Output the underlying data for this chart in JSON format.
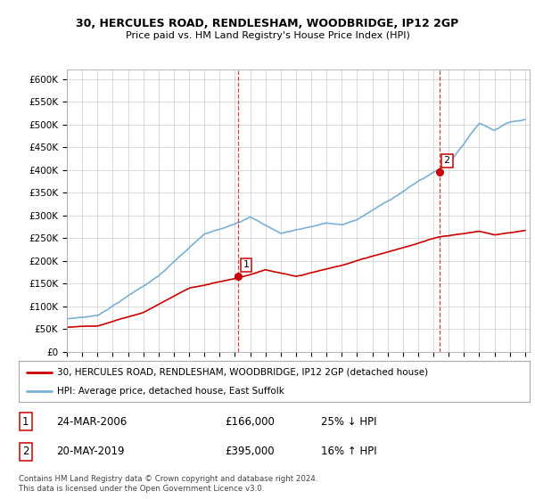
{
  "title1": "30, HERCULES ROAD, RENDLESHAM, WOODBRIDGE, IP12 2GP",
  "title2": "Price paid vs. HM Land Registry's House Price Index (HPI)",
  "ylabel_ticks": [
    "£0",
    "£50K",
    "£100K",
    "£150K",
    "£200K",
    "£250K",
    "£300K",
    "£350K",
    "£400K",
    "£450K",
    "£500K",
    "£550K",
    "£600K"
  ],
  "ytick_values": [
    0,
    50000,
    100000,
    150000,
    200000,
    250000,
    300000,
    350000,
    400000,
    450000,
    500000,
    550000,
    600000
  ],
  "hpi_color": "#7ab0d4",
  "price_color": "#cc0000",
  "marker1_year": 2006.23,
  "marker1_price": 166000,
  "marker2_year": 2019.38,
  "marker2_price": 395000,
  "legend_label1": "30, HERCULES ROAD, RENDLESHAM, WOODBRIDGE, IP12 2GP (detached house)",
  "legend_label2": "HPI: Average price, detached house, East Suffolk",
  "table_row1": [
    "1",
    "24-MAR-2006",
    "£166,000",
    "25% ↓ HPI"
  ],
  "table_row2": [
    "2",
    "20-MAY-2019",
    "£395,000",
    "16% ↑ HPI"
  ],
  "footer": "Contains HM Land Registry data © Crown copyright and database right 2024.\nThis data is licensed under the Open Government Licence v3.0.",
  "bg_color": "#ffffff",
  "grid_color": "#cccccc"
}
